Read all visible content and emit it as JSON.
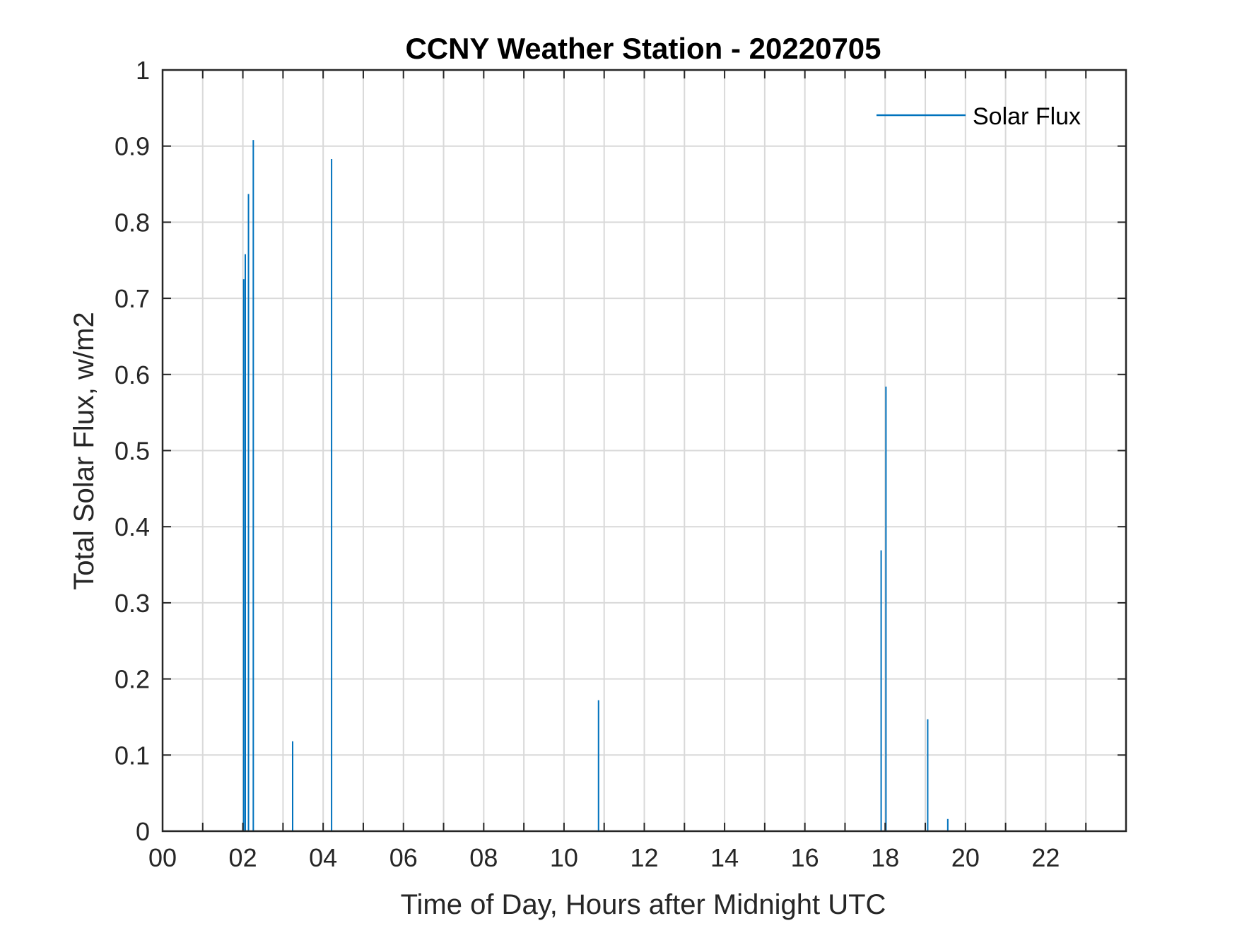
{
  "chart_data": {
    "type": "line",
    "title": "CCNY Weather Station - 20220705",
    "xlabel": "Time of Day, Hours after Midnight UTC",
    "ylabel": "Total Solar Flux, w/m2",
    "xlim": [
      0,
      24
    ],
    "ylim": [
      0,
      1
    ],
    "grid": true,
    "legend_position": "top-right",
    "x_ticks": [
      0,
      2,
      4,
      6,
      8,
      10,
      12,
      14,
      16,
      18,
      20,
      22
    ],
    "x_tick_labels": [
      "00",
      "02",
      "04",
      "06",
      "08",
      "10",
      "12",
      "14",
      "16",
      "18",
      "20",
      "22"
    ],
    "x_minor_ticks": [
      1,
      3,
      5,
      7,
      9,
      11,
      13,
      15,
      17,
      19,
      21,
      23
    ],
    "y_ticks": [
      0,
      0.1,
      0.2,
      0.3,
      0.4,
      0.5,
      0.6,
      0.7,
      0.8,
      0.9,
      1
    ],
    "y_tick_labels": [
      "0",
      "0.1",
      "0.2",
      "0.3",
      "0.4",
      "0.5",
      "0.6",
      "0.7",
      "0.8",
      "0.9",
      "1"
    ],
    "series": [
      {
        "name": "Solar Flux",
        "color": "#0072BD",
        "spikes": [
          {
            "x": 2.02,
            "y": 0.725
          },
          {
            "x": 2.06,
            "y": 0.758
          },
          {
            "x": 2.14,
            "y": 0.837
          },
          {
            "x": 2.26,
            "y": 0.908
          },
          {
            "x": 3.24,
            "y": 0.118
          },
          {
            "x": 4.21,
            "y": 0.883
          },
          {
            "x": 10.86,
            "y": 0.172
          },
          {
            "x": 17.9,
            "y": 0.369
          },
          {
            "x": 18.02,
            "y": 0.584
          },
          {
            "x": 19.06,
            "y": 0.147
          },
          {
            "x": 19.56,
            "y": 0.016
          }
        ]
      }
    ]
  }
}
